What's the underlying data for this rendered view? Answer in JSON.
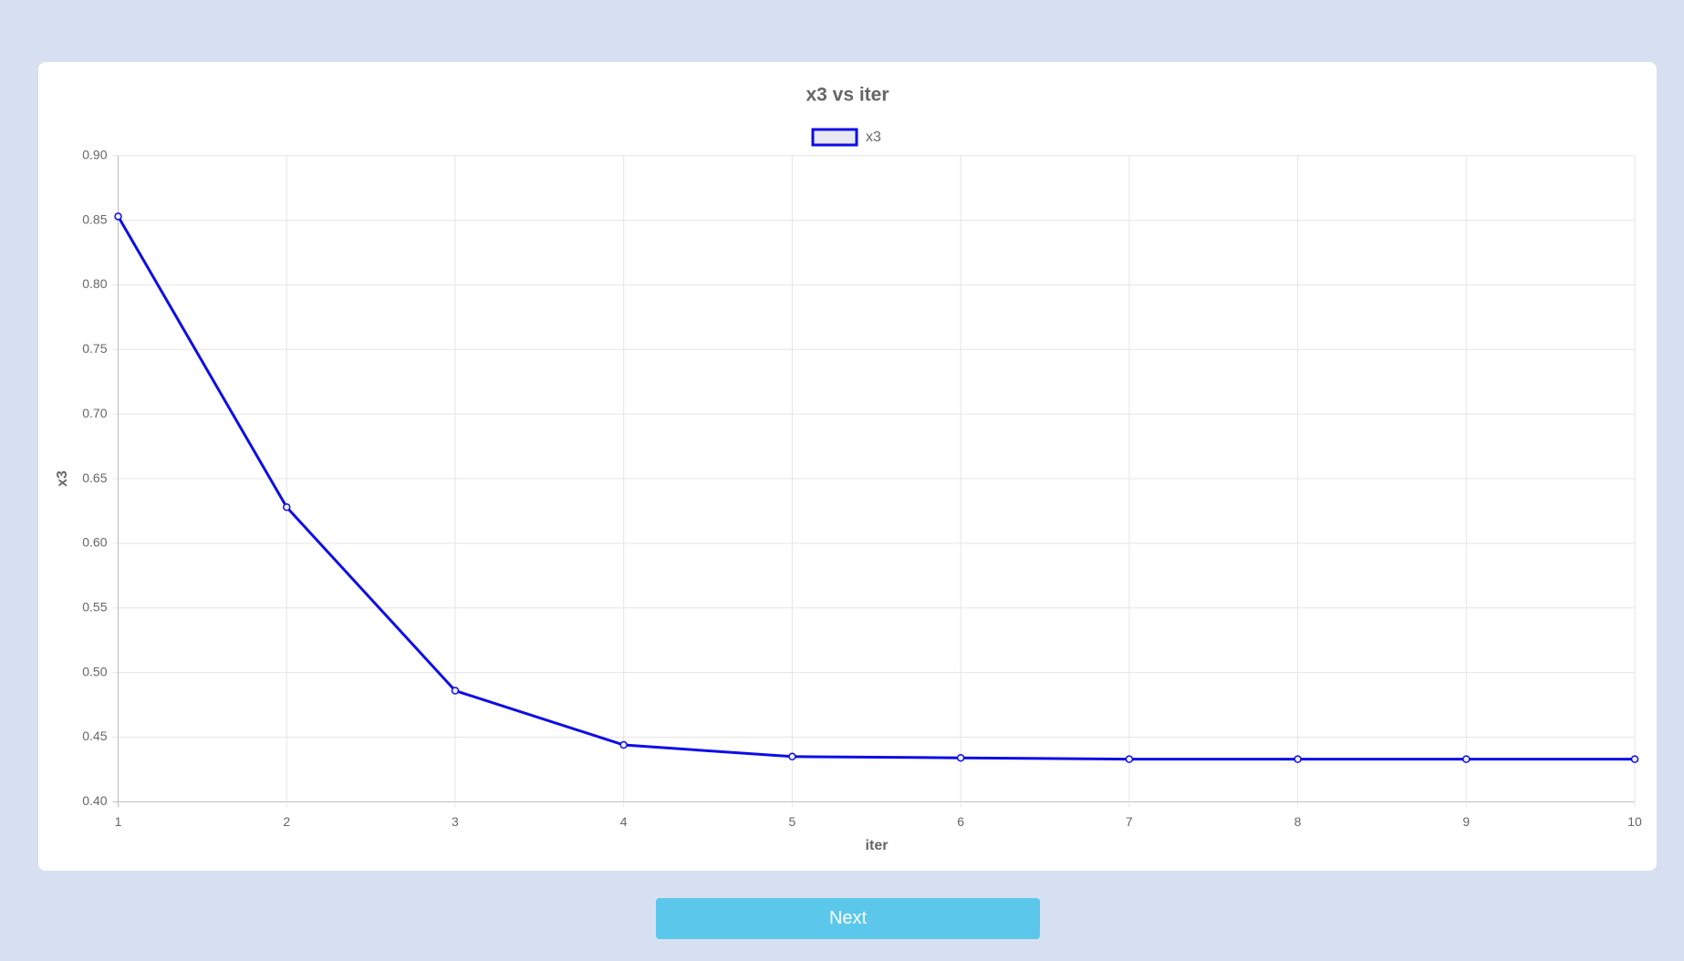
{
  "chart_data": {
    "type": "line",
    "title": "x3 vs iter",
    "x_label": "iter",
    "y_label": "x3",
    "x": [
      1,
      2,
      3,
      4,
      5,
      6,
      7,
      8,
      9,
      10
    ],
    "series": [
      {
        "name": "x3",
        "color": "#0d0de8",
        "values": [
          0.853,
          0.628,
          0.486,
          0.444,
          0.435,
          0.434,
          0.433,
          0.433,
          0.433,
          0.433
        ]
      }
    ],
    "xlim": [
      1,
      10
    ],
    "xticks": [
      1,
      2,
      3,
      4,
      5,
      6,
      7,
      8,
      9,
      10
    ],
    "ylim": [
      0.4,
      0.9
    ],
    "yticks": [
      {
        "value": 0.4,
        "label": "0.40"
      },
      0.45,
      {
        "value": 0.5,
        "label": "0.50"
      },
      0.55,
      {
        "value": 0.6,
        "label": "0.60"
      },
      0.65,
      {
        "value": 0.7,
        "label": "0.70"
      },
      0.75,
      {
        "value": 0.8,
        "label": "0.80"
      },
      0.85,
      {
        "value": 0.9,
        "label": "0.90"
      }
    ],
    "grid": true,
    "legend": "top"
  },
  "button": {
    "label": "Next"
  }
}
